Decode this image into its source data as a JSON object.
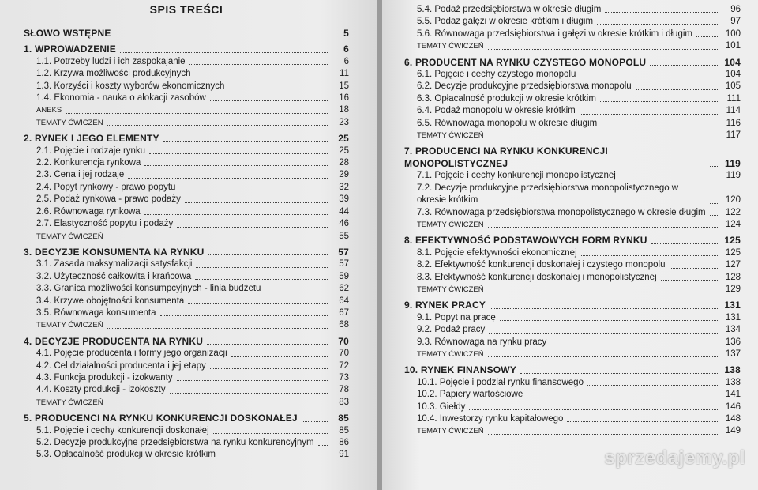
{
  "pages": [
    {
      "title": "SPIS TREŚCI",
      "blocks": [
        {
          "heading": {
            "text": "SŁOWO WSTĘPNE",
            "page": 5
          },
          "items": [],
          "extras": []
        },
        {
          "heading": {
            "text": "1. WPROWADZENIE",
            "page": 6
          },
          "items": [
            {
              "text": "1.1. Potrzeby ludzi i ich zaspokajanie",
              "page": 6
            },
            {
              "text": "1.2. Krzywa możliwości produkcyjnych",
              "page": 11
            },
            {
              "text": "1.3. Korzyści i koszty wyborów ekonomicznych",
              "page": 15
            },
            {
              "text": "1.4. Ekonomia - nauka o alokacji zasobów",
              "page": 16
            }
          ],
          "extras": [
            {
              "text": "ANEKS",
              "page": 18
            },
            {
              "text": "TEMATY ĆWICZEŃ",
              "page": 23
            }
          ]
        },
        {
          "heading": {
            "text": "2. RYNEK I JEGO ELEMENTY",
            "page": 25
          },
          "items": [
            {
              "text": "2.1. Pojęcie i rodzaje rynku",
              "page": 25
            },
            {
              "text": "2.2. Konkurencja rynkowa",
              "page": 28
            },
            {
              "text": "2.3. Cena i jej rodzaje",
              "page": 29
            },
            {
              "text": "2.4. Popyt rynkowy - prawo popytu",
              "page": 32
            },
            {
              "text": "2.5. Podaż rynkowa - prawo podaży",
              "page": 39
            },
            {
              "text": "2.6. Równowaga rynkowa",
              "page": 44
            },
            {
              "text": "2.7. Elastyczność popytu i podaży",
              "page": 46
            }
          ],
          "extras": [
            {
              "text": "TEMATY ĆWICZEŃ",
              "page": 55
            }
          ]
        },
        {
          "heading": {
            "text": "3. DECYZJE KONSUMENTA NA RYNKU",
            "page": 57
          },
          "items": [
            {
              "text": "3.1. Zasada maksymalizacji satysfakcji",
              "page": 57
            },
            {
              "text": "3.2. Użyteczność całkowita i krańcowa",
              "page": 59
            },
            {
              "text": "3.3. Granica możliwości konsumpcyjnych - linia budżetu",
              "page": 62
            },
            {
              "text": "3.4. Krzywe obojętności konsumenta",
              "page": 64
            },
            {
              "text": "3.5. Równowaga konsumenta",
              "page": 67
            }
          ],
          "extras": [
            {
              "text": "TEMATY ĆWICZEŃ",
              "page": 68
            }
          ]
        },
        {
          "heading": {
            "text": "4. DECYZJE PRODUCENTA NA RYNKU",
            "page": 70
          },
          "items": [
            {
              "text": "4.1. Pojęcie producenta i formy jego organizacji",
              "page": 70
            },
            {
              "text": "4.2. Cel działalności producenta i jej etapy",
              "page": 72
            },
            {
              "text": "4.3. Funkcja produkcji - izokwanty",
              "page": 73
            },
            {
              "text": "4.4. Koszty produkcji - izokoszty",
              "page": 78
            }
          ],
          "extras": [
            {
              "text": "TEMATY ĆWICZEŃ",
              "page": 83
            }
          ]
        },
        {
          "heading": {
            "text": "5. PRODUCENCI NA RYNKU KONKURENCJI DOSKONAŁEJ",
            "page": 85
          },
          "items": [
            {
              "text": "5.1. Pojęcie i cechy konkurencji doskonałej",
              "page": 85
            },
            {
              "text": "5.2. Decyzje produkcyjne przedsiębiorstwa na rynku konkurencyjnym",
              "page": 86
            },
            {
              "text": "5.3. Opłacalność produkcji w okresie krótkim",
              "page": 91
            }
          ],
          "extras": []
        }
      ]
    },
    {
      "blocks": [
        {
          "items": [
            {
              "text": "5.4. Podaż przedsiębiorstwa w okresie długim",
              "page": 96
            },
            {
              "text": "5.5. Podaż gałęzi w okresie krótkim i długim",
              "page": 97
            },
            {
              "text": "5.6. Równowaga przedsiębiorstwa i gałęzi w okresie krótkim i długim",
              "page": 100
            }
          ],
          "extras": [
            {
              "text": "TEMATY ĆWICZEŃ",
              "page": 101
            }
          ]
        },
        {
          "heading": {
            "text": "6. PRODUCENT NA RYNKU CZYSTEGO MONOPOLU",
            "page": 104
          },
          "items": [
            {
              "text": "6.1. Pojęcie i cechy czystego monopolu",
              "page": 104
            },
            {
              "text": "6.2. Decyzje produkcyjne przedsiębiorstwa monopolu",
              "page": 105
            },
            {
              "text": "6.3. Opłacalność produkcji w okresie krótkim",
              "page": 111
            },
            {
              "text": "6.4. Podaż monopolu w okresie krótkim",
              "page": 114
            },
            {
              "text": "6.5. Równowaga monopolu w okresie długim",
              "page": 116
            }
          ],
          "extras": [
            {
              "text": "TEMATY ĆWICZEŃ",
              "page": 117
            }
          ]
        },
        {
          "heading": {
            "text": "7. PRODUCENCI NA RYNKU KONKURENCJI MONOPOLISTYCZNEJ",
            "page": 119
          },
          "items": [
            {
              "text": "7.1. Pojęcie i cechy konkurencji monopolistycznej",
              "page": 119
            },
            {
              "text": "7.2. Decyzje produkcyjne przedsiębiorstwa monopolistycznego w okresie krótkim",
              "page": 120
            },
            {
              "text": "7.3. Równowaga przedsiębiorstwa monopolistycznego w okresie długim",
              "page": 122
            }
          ],
          "extras": [
            {
              "text": "TEMATY ĆWICZEŃ",
              "page": 124
            }
          ]
        },
        {
          "heading": {
            "text": "8. EFEKTYWNOŚĆ PODSTAWOWYCH FORM RYNKU",
            "page": 125
          },
          "items": [
            {
              "text": "8.1. Pojęcie efektywności ekonomicznej",
              "page": 125
            },
            {
              "text": "8.2. Efektywność konkurencji doskonałej i czystego monopolu",
              "page": 127
            },
            {
              "text": "8.3. Efektywność konkurencji doskonałej i monopolistycznej",
              "page": 128
            }
          ],
          "extras": [
            {
              "text": "TEMATY ĆWICZEŃ",
              "page": 129
            }
          ]
        },
        {
          "heading": {
            "text": "9. RYNEK PRACY",
            "page": 131
          },
          "items": [
            {
              "text": "9.1. Popyt na pracę",
              "page": 131
            },
            {
              "text": "9.2. Podaż pracy",
              "page": 134
            },
            {
              "text": "9.3. Równowaga na rynku pracy",
              "page": 136
            }
          ],
          "extras": [
            {
              "text": "TEMATY ĆWICZEŃ",
              "page": 137
            }
          ]
        },
        {
          "heading": {
            "text": "10. RYNEK FINANSOWY",
            "page": 138
          },
          "items": [
            {
              "text": "10.1. Pojęcie i podział rynku finansowego",
              "page": 138
            },
            {
              "text": "10.2. Papiery wartościowe",
              "page": 141
            },
            {
              "text": "10.3. Giełdy",
              "page": 146
            },
            {
              "text": "10.4. Inwestorzy rynku kapitałowego",
              "page": 148
            }
          ],
          "extras": [
            {
              "text": "TEMATY ĆWICZEŃ",
              "page": 149
            }
          ]
        }
      ]
    }
  ],
  "watermark": "sprzedajemy.pl"
}
